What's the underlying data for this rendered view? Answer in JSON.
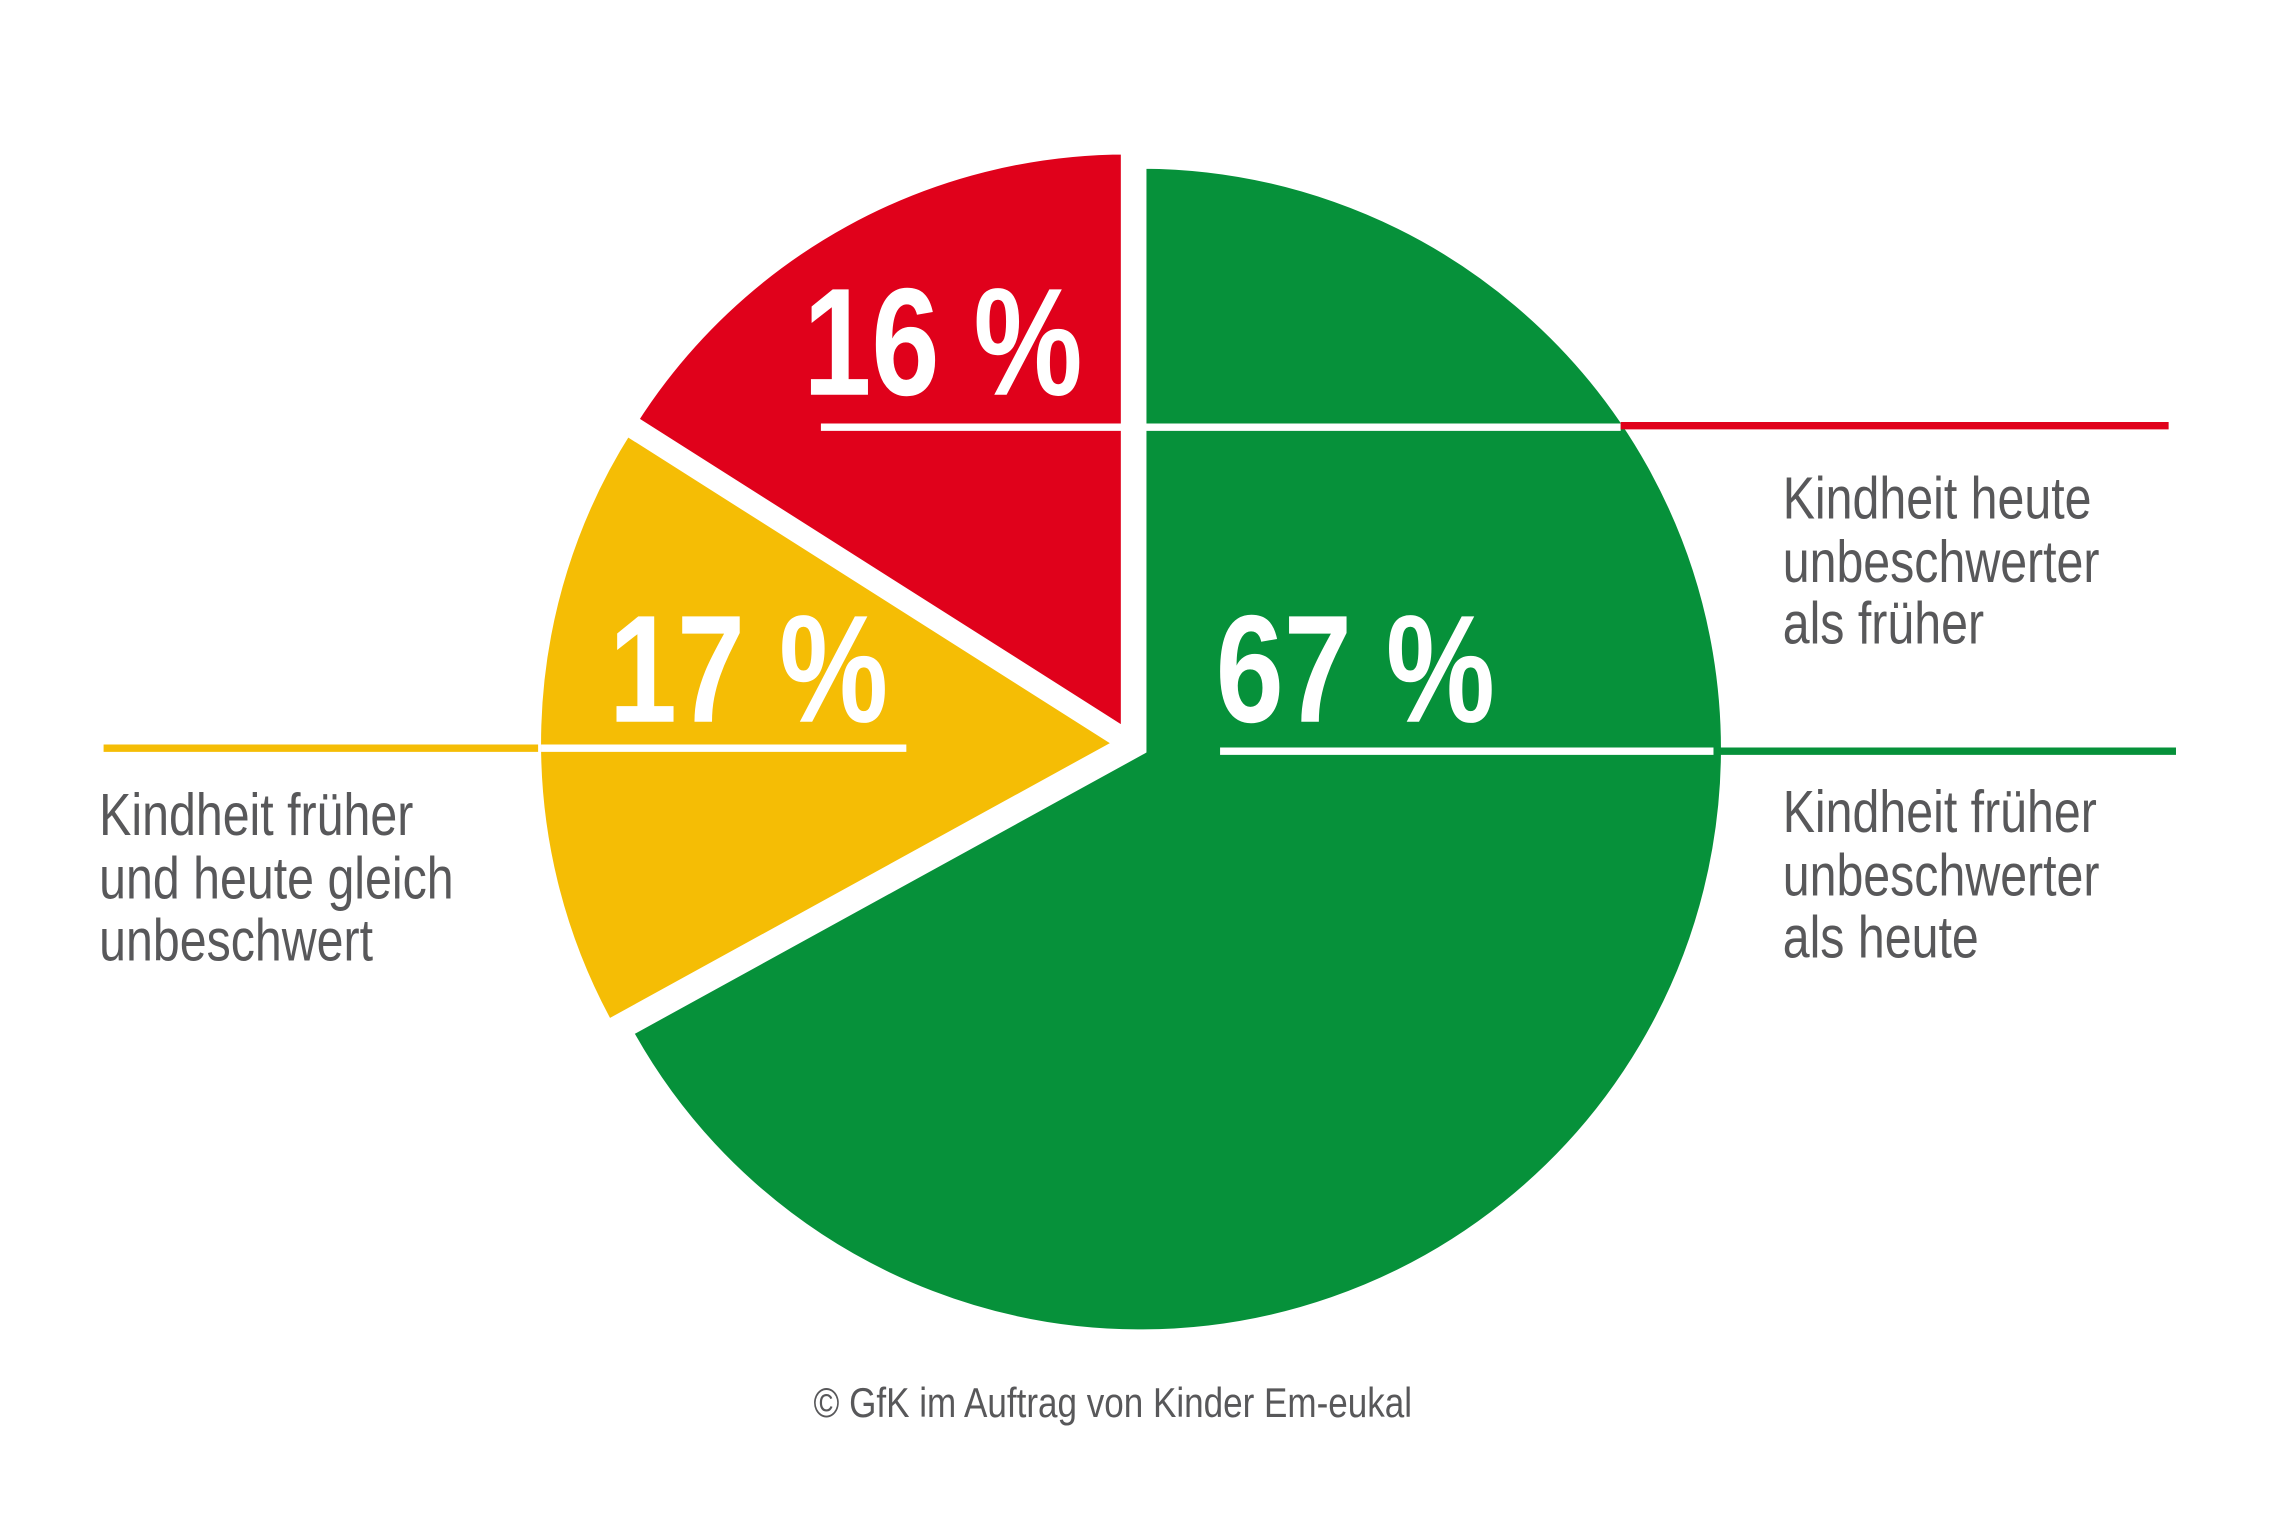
{
  "chart_data": {
    "type": "pie",
    "title": "",
    "slices": [
      {
        "label": "Kindheit früher unbeschwerter als heute",
        "lines": [
          "Kindheit früher",
          "unbeschwerter",
          "als heute"
        ],
        "value": 67,
        "display": "67 %",
        "color": "#06913a"
      },
      {
        "label": "Kindheit früher und heute gleich unbeschwert",
        "lines": [
          "Kindheit früher",
          "und heute gleich",
          "unbeschwert"
        ],
        "value": 17,
        "display": "17 %",
        "color": "#f5bd05"
      },
      {
        "label": "Kindheit heute unbeschwerter als früher",
        "lines": [
          "Kindheit heute",
          "unbeschwerter",
          "als früher"
        ],
        "value": 16,
        "display": "16 %",
        "color": "#e0011b"
      }
    ],
    "source": "© GfK im Auftrag von Kinder Em-eukal"
  }
}
